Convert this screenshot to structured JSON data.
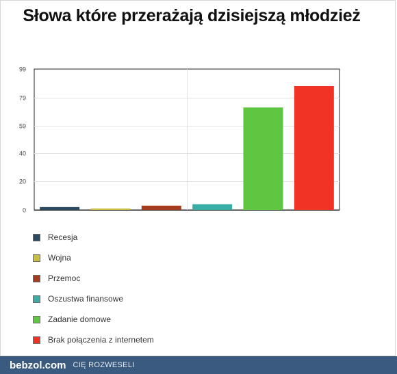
{
  "chart_data": {
    "type": "bar",
    "title": "Słowa które przerażają dzisiejszą młodzież",
    "categories": [
      "Recesja",
      "Wojna",
      "Przemoc",
      "Oszustwa finansowe",
      "Zadanie domowe",
      "Brak połączenia z internetem"
    ],
    "values": [
      2,
      1,
      3,
      4,
      72,
      87
    ],
    "colors": [
      "#2b4a63",
      "#c9be3f",
      "#a43c1d",
      "#3aaea6",
      "#5fc642",
      "#f03324"
    ],
    "yticks": [
      "0",
      "20",
      "40",
      "59",
      "79",
      "99"
    ],
    "ylim": [
      0,
      99
    ],
    "xlabel": "",
    "ylabel": "",
    "grid": true,
    "legend": "bottom"
  },
  "footer": {
    "brand": "bebzol",
    "brand_tld": ".com",
    "slogan": "CIĘ ROZWESELI"
  }
}
